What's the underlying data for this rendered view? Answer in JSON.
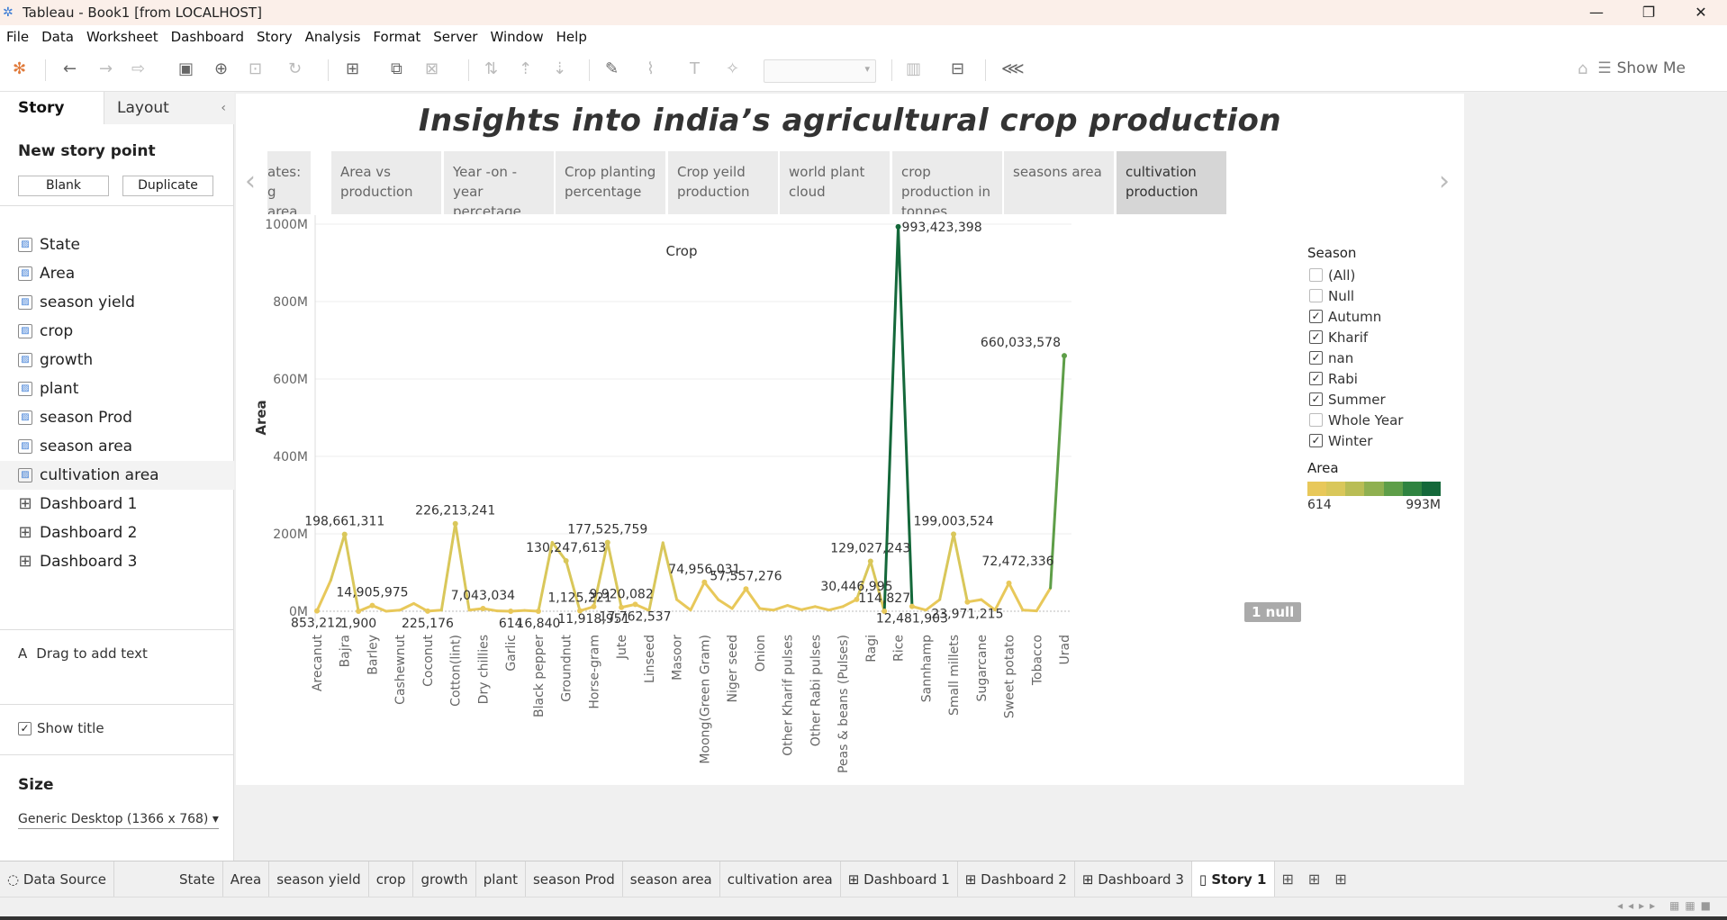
{
  "window": {
    "title": "Tableau - Book1 [from LOCALHOST]"
  },
  "menu": [
    "File",
    "Data",
    "Worksheet",
    "Dashboard",
    "Story",
    "Analysis",
    "Format",
    "Server",
    "Window",
    "Help"
  ],
  "toolbar": {
    "show_me": "Show Me"
  },
  "sidebar": {
    "tab_story": "Story",
    "tab_layout": "Layout",
    "new_point": "New story point",
    "blank": "Blank",
    "duplicate": "Duplicate",
    "sheets": [
      {
        "label": "State",
        "type": "sheet"
      },
      {
        "label": "Area",
        "type": "sheet"
      },
      {
        "label": "season yield",
        "type": "sheet"
      },
      {
        "label": "crop",
        "type": "sheet"
      },
      {
        "label": "growth",
        "type": "sheet"
      },
      {
        "label": "plant",
        "type": "sheet"
      },
      {
        "label": "season Prod",
        "type": "sheet"
      },
      {
        "label": " season area",
        "type": "sheet"
      },
      {
        "label": "cultivation area",
        "type": "sheet"
      },
      {
        "label": "Dashboard 1",
        "type": "dashboard"
      },
      {
        "label": "Dashboard 2",
        "type": "dashboard"
      },
      {
        "label": "Dashboard 3",
        "type": "dashboard"
      }
    ],
    "drag_text": "Drag to add text",
    "show_title": "Show title",
    "size_heading": "Size",
    "size_value": "Generic Desktop (1366 x 768)"
  },
  "story": {
    "title": "Insights into india’s agricultural crop production",
    "nav_points": [
      {
        "l1": "ates:",
        "l2": "g area"
      },
      {
        "l1": "Area vs",
        "l2": "production"
      },
      {
        "l1": "Year -on -year",
        "l2": "percetage"
      },
      {
        "l1": "Crop planting",
        "l2": "percentage"
      },
      {
        "l1": "Crop yeild",
        "l2": "production"
      },
      {
        "l1": "world plant cloud",
        "l2": ""
      },
      {
        "l1": "crop production in",
        "l2": "tonnes"
      },
      {
        "l1": "seasons area",
        "l2": ""
      },
      {
        "l1": "cultivation",
        "l2": "production"
      }
    ]
  },
  "legend": {
    "season_title": "Season",
    "seasons": [
      {
        "label": "(All)",
        "checked": false
      },
      {
        "label": "Null",
        "checked": false
      },
      {
        "label": "Autumn",
        "checked": true
      },
      {
        "label": "Kharif",
        "checked": true
      },
      {
        "label": "nan",
        "checked": true
      },
      {
        "label": "Rabi",
        "checked": true
      },
      {
        "label": "Summer",
        "checked": true
      },
      {
        "label": "Whole Year",
        "checked": false
      },
      {
        "label": "Winter",
        "checked": true
      }
    ],
    "area_title": "Area",
    "area_min": "614",
    "area_max": "993M",
    "gradient": [
      "#e8c85a",
      "#d9c75a",
      "#b9bd55",
      "#8fb050",
      "#5e9e48",
      "#2f8340",
      "#14683a"
    ],
    "null_badge": "1 null"
  },
  "chart_data": {
    "type": "line",
    "title": "Crop",
    "ylabel": "Area",
    "y_ticks": [
      "0M",
      "200M",
      "400M",
      "600M",
      "800M",
      "1000M"
    ],
    "ylim": [
      0,
      1000000000
    ],
    "categories": [
      "Arecanut",
      "",
      "Bajra",
      "",
      "Barley",
      "",
      "Cashewnut",
      "",
      "Coconut",
      "",
      "Cotton(lint)",
      "",
      "Dry chillies",
      "",
      "Garlic",
      "",
      "Black pepper",
      "",
      "Groundnut",
      "",
      "Horse-gram",
      "",
      "Jute",
      "",
      "Linseed",
      "",
      "Masoor",
      "",
      "Moong(Green Gram)",
      "",
      "Niger seed",
      "",
      "Onion",
      "",
      "Other Kharif pulses",
      "",
      "Other Rabi pulses",
      "",
      "Peas & beans (Pulses)",
      "",
      "Ragi",
      "",
      "Rice",
      "",
      "Sannhamp",
      "",
      "Small millets",
      "",
      "Sugarcane",
      "",
      "Sweet potato",
      "",
      "Tobacco",
      "",
      "Urad"
    ],
    "values": [
      853212,
      80000000,
      198661311,
      1900,
      14905975,
      1900,
      3000000,
      20000000,
      225176,
      3000000,
      226213241,
      3000000,
      7043034,
      1000000,
      614,
      2000000,
      16840,
      178000000,
      130247613,
      1125221,
      11918951,
      177525759,
      9920082,
      17762537,
      2000000,
      177000000,
      30000000,
      3000000,
      74956031,
      30000000,
      7000000,
      57557276,
      7000000,
      3000000,
      15000000,
      4000000,
      12000000,
      3000000,
      12000000,
      30446995,
      129027243,
      114827,
      993423398,
      12481903,
      3000000,
      30000000,
      199003524,
      23971215,
      30000000,
      3000000,
      72472336,
      3000000,
      1000000,
      60000000,
      660033578
    ],
    "data_labels": [
      {
        "i": 0,
        "text": "853,212",
        "pos": "below"
      },
      {
        "i": 2,
        "text": "198,661,311",
        "pos": "above"
      },
      {
        "i": 3,
        "text": "1,900",
        "pos": "below"
      },
      {
        "i": 4,
        "text": "14,905,975",
        "pos": "above"
      },
      {
        "i": 8,
        "text": "225,176",
        "pos": "below"
      },
      {
        "i": 10,
        "text": "226,213,241",
        "pos": "above"
      },
      {
        "i": 12,
        "text": "7,043,034",
        "pos": "above"
      },
      {
        "i": 14,
        "text": "614",
        "pos": "below"
      },
      {
        "i": 16,
        "text": "16,840",
        "pos": "below"
      },
      {
        "i": 18,
        "text": "130,247,613",
        "pos": "above"
      },
      {
        "i": 19,
        "text": "1,125,221",
        "pos": "above"
      },
      {
        "i": 20,
        "text": "11,918,951",
        "pos": "below"
      },
      {
        "i": 21,
        "text": "177,525,759",
        "pos": "above"
      },
      {
        "i": 22,
        "text": "9,920,082",
        "pos": "above"
      },
      {
        "i": 23,
        "text": "17,762,537",
        "pos": "below"
      },
      {
        "i": 28,
        "text": "74,956,031",
        "pos": "above"
      },
      {
        "i": 31,
        "text": "57,557,276",
        "pos": "above"
      },
      {
        "i": 39,
        "text": "30,446,995",
        "pos": "above"
      },
      {
        "i": 40,
        "text": "129,027,243",
        "pos": "above"
      },
      {
        "i": 41,
        "text": "114,827",
        "pos": "above"
      },
      {
        "i": 42,
        "text": "993,423,398",
        "pos": "right"
      },
      {
        "i": 43,
        "text": "12,481,903",
        "pos": "below"
      },
      {
        "i": 46,
        "text": "199,003,524",
        "pos": "above"
      },
      {
        "i": 47,
        "text": "23,971,215",
        "pos": "below"
      },
      {
        "i": 50,
        "text": "72,472,336",
        "pos": "aboveright"
      },
      {
        "i": 54,
        "text": "660,033,578",
        "pos": "left"
      }
    ]
  },
  "bottom_tabs": [
    {
      "label": "Data Source",
      "kind": "datasource"
    },
    {
      "label": "State",
      "kind": "sheet"
    },
    {
      "label": "Area",
      "kind": "sheet"
    },
    {
      "label": "season yield",
      "kind": "sheet"
    },
    {
      "label": "crop",
      "kind": "sheet"
    },
    {
      "label": "growth",
      "kind": "sheet"
    },
    {
      "label": "plant",
      "kind": "sheet"
    },
    {
      "label": "season Prod",
      "kind": "sheet"
    },
    {
      "label": "season area",
      "kind": "sheet"
    },
    {
      "label": "cultivation area",
      "kind": "sheet"
    },
    {
      "label": "Dashboard 1",
      "kind": "dashboard"
    },
    {
      "label": "Dashboard 2",
      "kind": "dashboard"
    },
    {
      "label": "Dashboard 3",
      "kind": "dashboard"
    },
    {
      "label": "Story 1",
      "kind": "story",
      "active": true
    }
  ]
}
